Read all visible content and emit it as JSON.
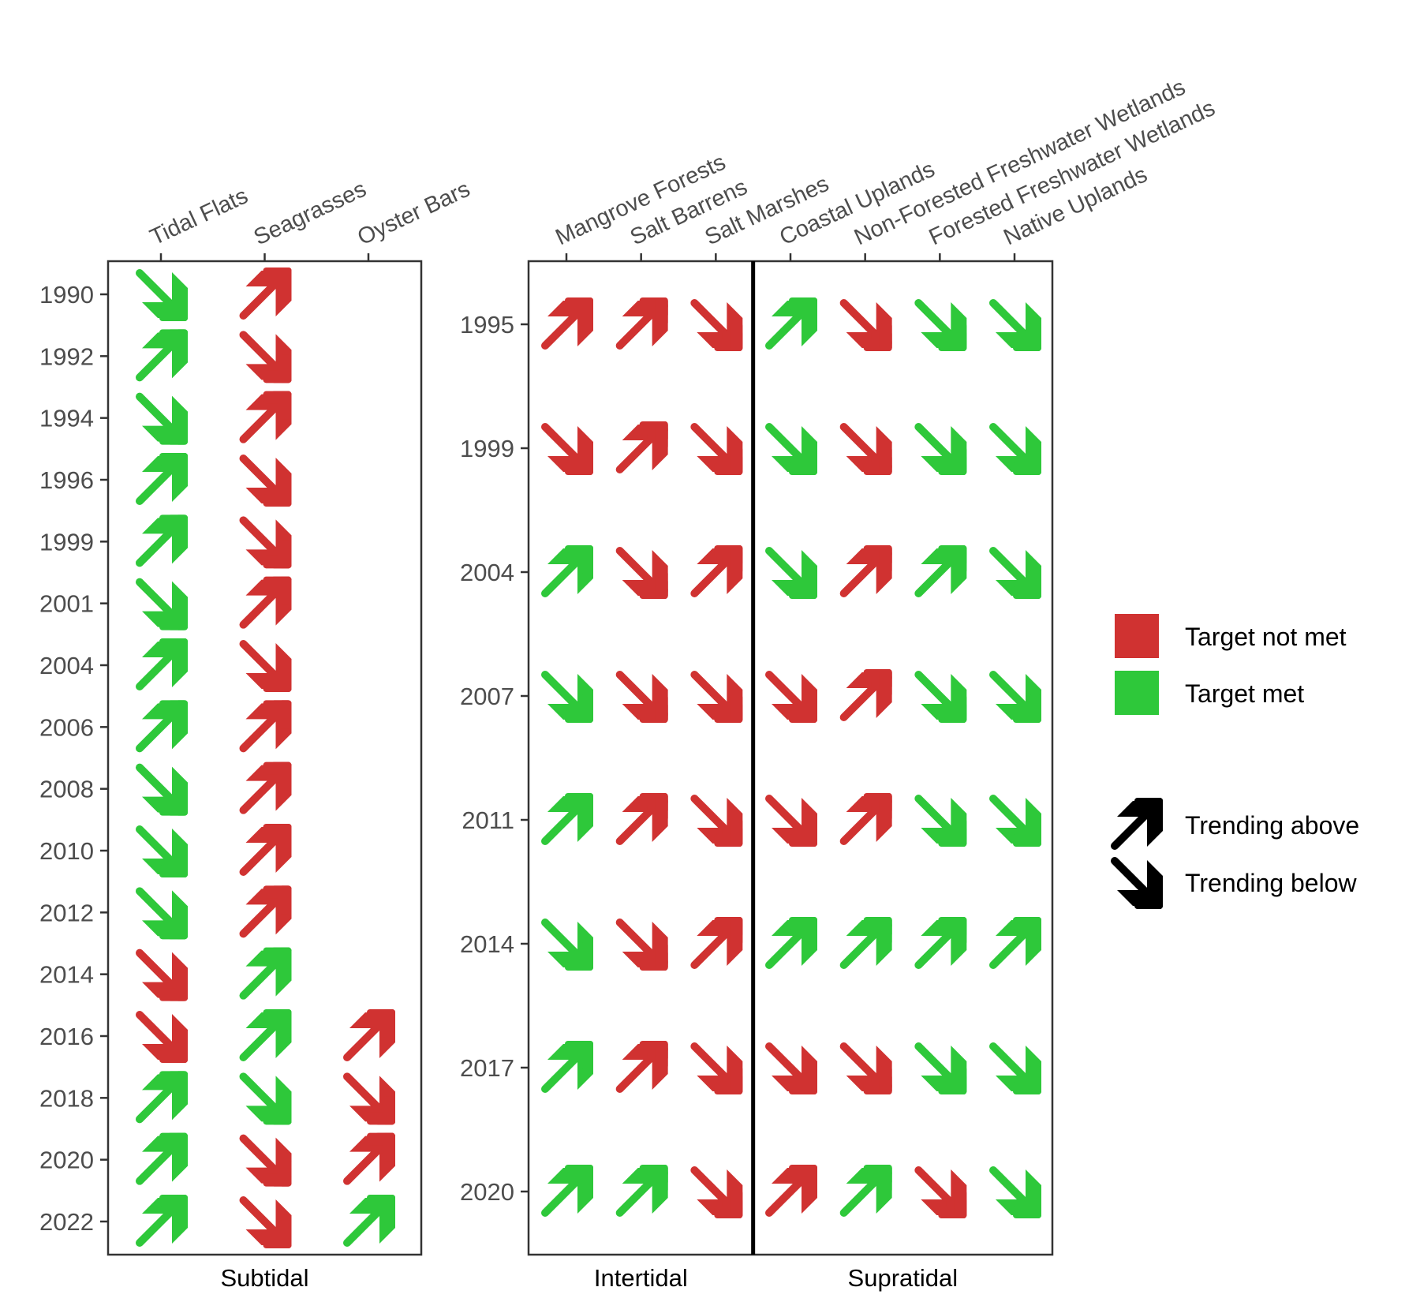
{
  "chart_data": [
    {
      "type": "table",
      "facet": "Subtidal",
      "columns": [
        "Tidal Flats",
        "Seagrasses",
        "Oyster Bars"
      ],
      "years": [
        "1990",
        "1992",
        "1994",
        "1996",
        "1999",
        "2001",
        "2004",
        "2006",
        "2008",
        "2010",
        "2012",
        "2014",
        "2016",
        "2018",
        "2020",
        "2022"
      ],
      "cells": {
        "Tidal Flats": [
          {
            "dir": "below",
            "status": "met"
          },
          {
            "dir": "above",
            "status": "met"
          },
          {
            "dir": "below",
            "status": "met"
          },
          {
            "dir": "above",
            "status": "met"
          },
          {
            "dir": "above",
            "status": "met"
          },
          {
            "dir": "below",
            "status": "met"
          },
          {
            "dir": "above",
            "status": "met"
          },
          {
            "dir": "above",
            "status": "met"
          },
          {
            "dir": "below",
            "status": "met"
          },
          {
            "dir": "below",
            "status": "met"
          },
          {
            "dir": "below",
            "status": "met"
          },
          {
            "dir": "below",
            "status": "not_met"
          },
          {
            "dir": "below",
            "status": "not_met"
          },
          {
            "dir": "above",
            "status": "met"
          },
          {
            "dir": "above",
            "status": "met"
          },
          {
            "dir": "above",
            "status": "met"
          }
        ],
        "Seagrasses": [
          {
            "dir": "above",
            "status": "not_met"
          },
          {
            "dir": "below",
            "status": "not_met"
          },
          {
            "dir": "above",
            "status": "not_met"
          },
          {
            "dir": "below",
            "status": "not_met"
          },
          {
            "dir": "below",
            "status": "not_met"
          },
          {
            "dir": "above",
            "status": "not_met"
          },
          {
            "dir": "below",
            "status": "not_met"
          },
          {
            "dir": "above",
            "status": "not_met"
          },
          {
            "dir": "above",
            "status": "not_met"
          },
          {
            "dir": "above",
            "status": "not_met"
          },
          {
            "dir": "above",
            "status": "not_met"
          },
          {
            "dir": "above",
            "status": "met"
          },
          {
            "dir": "above",
            "status": "met"
          },
          {
            "dir": "below",
            "status": "met"
          },
          {
            "dir": "below",
            "status": "not_met"
          },
          {
            "dir": "below",
            "status": "not_met"
          }
        ],
        "Oyster Bars": [
          null,
          null,
          null,
          null,
          null,
          null,
          null,
          null,
          null,
          null,
          null,
          null,
          {
            "dir": "above",
            "status": "not_met"
          },
          {
            "dir": "below",
            "status": "not_met"
          },
          {
            "dir": "above",
            "status": "not_met"
          },
          {
            "dir": "above",
            "status": "met"
          }
        ]
      }
    },
    {
      "type": "table",
      "facets": [
        "Intertidal",
        "Supratidal"
      ],
      "columns": [
        "Mangrove Forests",
        "Salt Barrens",
        "Salt Marshes",
        "Coastal Uplands",
        "Non-Forested Freshwater Wetlands",
        "Forested Freshwater Wetlands",
        "Native Uplands"
      ],
      "column_facet": [
        "Intertidal",
        "Intertidal",
        "Intertidal",
        "Supratidal",
        "Supratidal",
        "Supratidal",
        "Supratidal"
      ],
      "years": [
        "1995",
        "1999",
        "2004",
        "2007",
        "2011",
        "2014",
        "2017",
        "2020"
      ],
      "cells": {
        "Mangrove Forests": [
          {
            "dir": "above",
            "status": "not_met"
          },
          {
            "dir": "below",
            "status": "not_met"
          },
          {
            "dir": "above",
            "status": "met"
          },
          {
            "dir": "below",
            "status": "met"
          },
          {
            "dir": "above",
            "status": "met"
          },
          {
            "dir": "below",
            "status": "met"
          },
          {
            "dir": "above",
            "status": "met"
          },
          {
            "dir": "above",
            "status": "met"
          }
        ],
        "Salt Barrens": [
          {
            "dir": "above",
            "status": "not_met"
          },
          {
            "dir": "above",
            "status": "not_met"
          },
          {
            "dir": "below",
            "status": "not_met"
          },
          {
            "dir": "below",
            "status": "not_met"
          },
          {
            "dir": "above",
            "status": "not_met"
          },
          {
            "dir": "below",
            "status": "not_met"
          },
          {
            "dir": "above",
            "status": "not_met"
          },
          {
            "dir": "above",
            "status": "met"
          }
        ],
        "Salt Marshes": [
          {
            "dir": "below",
            "status": "not_met"
          },
          {
            "dir": "below",
            "status": "not_met"
          },
          {
            "dir": "above",
            "status": "not_met"
          },
          {
            "dir": "below",
            "status": "not_met"
          },
          {
            "dir": "below",
            "status": "not_met"
          },
          {
            "dir": "above",
            "status": "not_met"
          },
          {
            "dir": "below",
            "status": "not_met"
          },
          {
            "dir": "below",
            "status": "not_met"
          }
        ],
        "Coastal Uplands": [
          {
            "dir": "above",
            "status": "met"
          },
          {
            "dir": "below",
            "status": "met"
          },
          {
            "dir": "below",
            "status": "met"
          },
          {
            "dir": "below",
            "status": "not_met"
          },
          {
            "dir": "below",
            "status": "not_met"
          },
          {
            "dir": "above",
            "status": "met"
          },
          {
            "dir": "below",
            "status": "not_met"
          },
          {
            "dir": "above",
            "status": "not_met"
          }
        ],
        "Non-Forested Freshwater Wetlands": [
          {
            "dir": "below",
            "status": "not_met"
          },
          {
            "dir": "below",
            "status": "not_met"
          },
          {
            "dir": "above",
            "status": "not_met"
          },
          {
            "dir": "above",
            "status": "not_met"
          },
          {
            "dir": "above",
            "status": "not_met"
          },
          {
            "dir": "above",
            "status": "met"
          },
          {
            "dir": "below",
            "status": "not_met"
          },
          {
            "dir": "above",
            "status": "met"
          }
        ],
        "Forested Freshwater Wetlands": [
          {
            "dir": "below",
            "status": "met"
          },
          {
            "dir": "below",
            "status": "met"
          },
          {
            "dir": "above",
            "status": "met"
          },
          {
            "dir": "below",
            "status": "met"
          },
          {
            "dir": "below",
            "status": "met"
          },
          {
            "dir": "above",
            "status": "met"
          },
          {
            "dir": "below",
            "status": "met"
          },
          {
            "dir": "below",
            "status": "not_met"
          }
        ],
        "Native Uplands": [
          {
            "dir": "below",
            "status": "met"
          },
          {
            "dir": "below",
            "status": "met"
          },
          {
            "dir": "below",
            "status": "met"
          },
          {
            "dir": "below",
            "status": "met"
          },
          {
            "dir": "below",
            "status": "met"
          },
          {
            "dir": "above",
            "status": "met"
          },
          {
            "dir": "below",
            "status": "met"
          },
          {
            "dir": "below",
            "status": "met"
          }
        ]
      }
    }
  ],
  "legend": {
    "fill": [
      {
        "key": "not_met",
        "label": "Target not met",
        "color": "#d03231"
      },
      {
        "key": "met",
        "label": "Target met",
        "color": "#2ec83a"
      }
    ],
    "shape": [
      {
        "key": "above",
        "label": "Trending above"
      },
      {
        "key": "below",
        "label": "Trending below"
      }
    ],
    "placement": "right"
  },
  "colors": {
    "not_met": "#d03231",
    "met": "#2ec83a",
    "legend_arrow": "#000000"
  }
}
